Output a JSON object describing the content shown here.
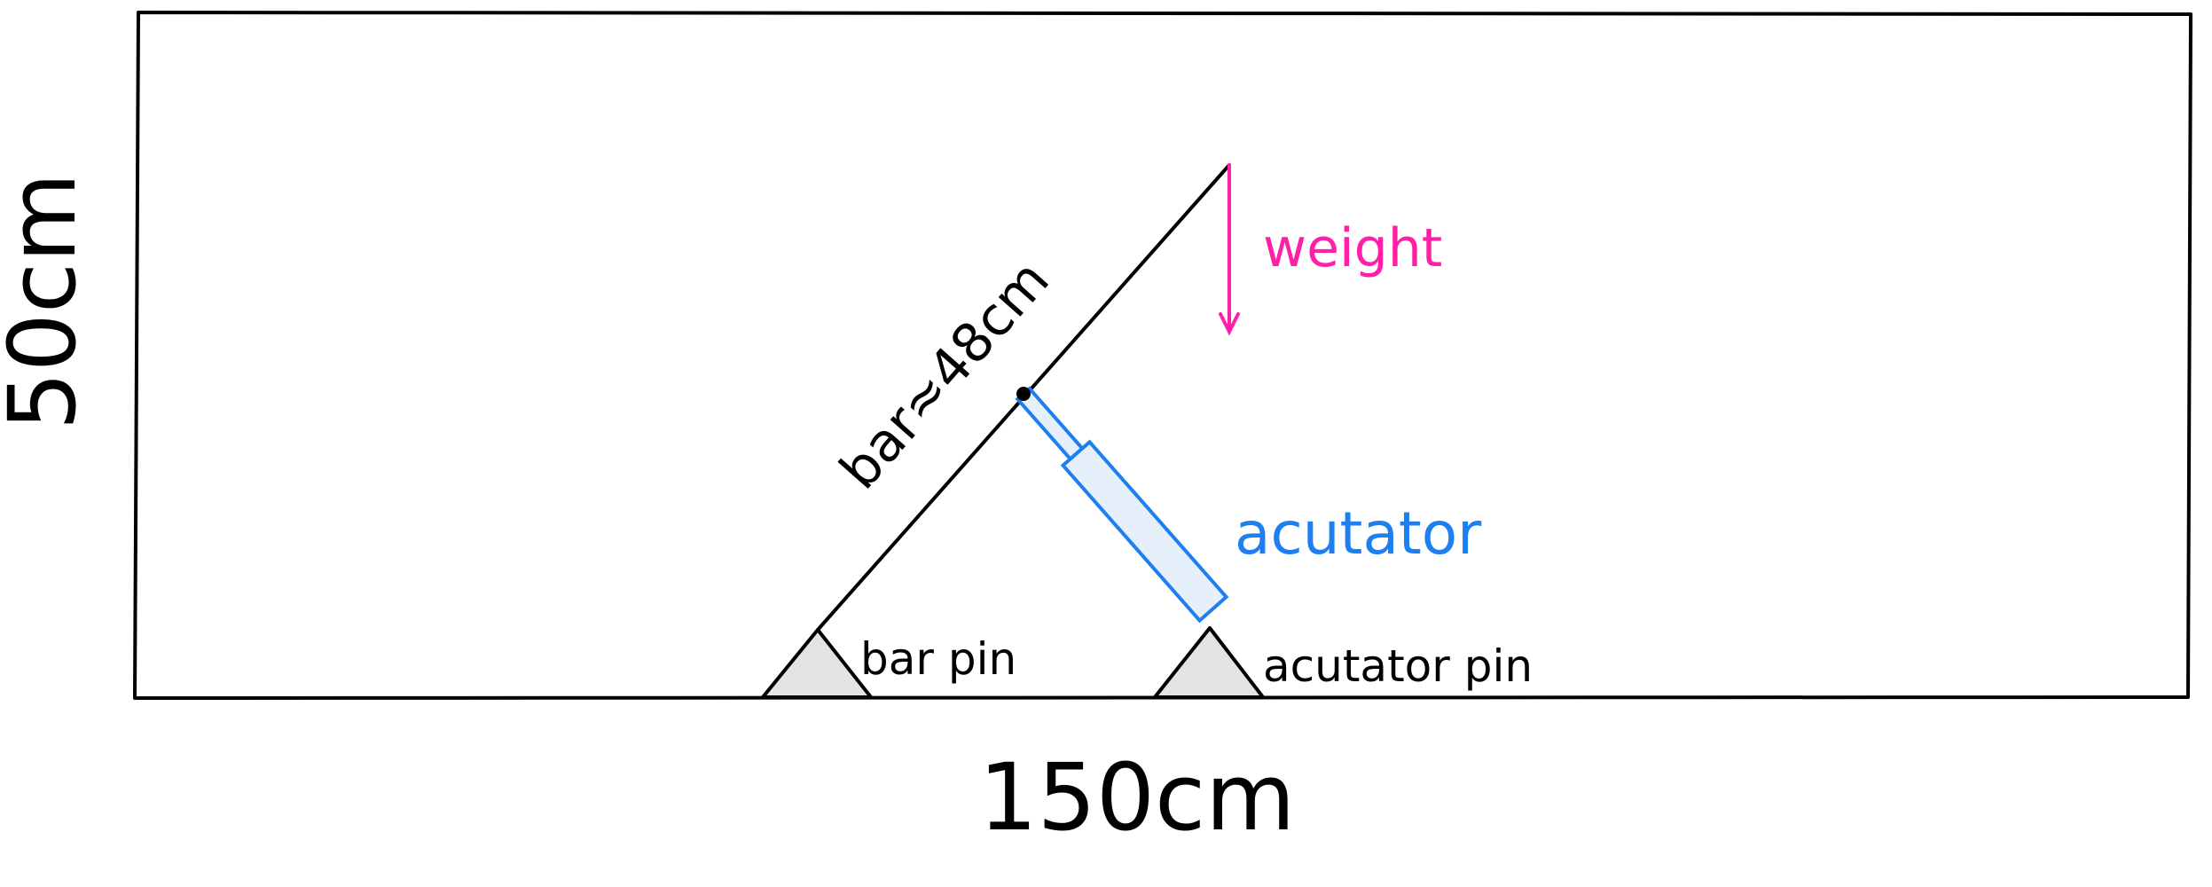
{
  "labels": {
    "height": "50cm",
    "width": "150cm",
    "bar": "bar≈48cm",
    "weight": "weight",
    "actuator": "acutator",
    "bar_pin": "bar pin",
    "actuator_pin": "acutator pin"
  },
  "colors": {
    "outline": "#000000",
    "weight": "#ff1fa9",
    "actuator": "#1e7ff0",
    "actuator_fill": "#e6f0fb",
    "pin_fill": "#e3e3e3"
  }
}
